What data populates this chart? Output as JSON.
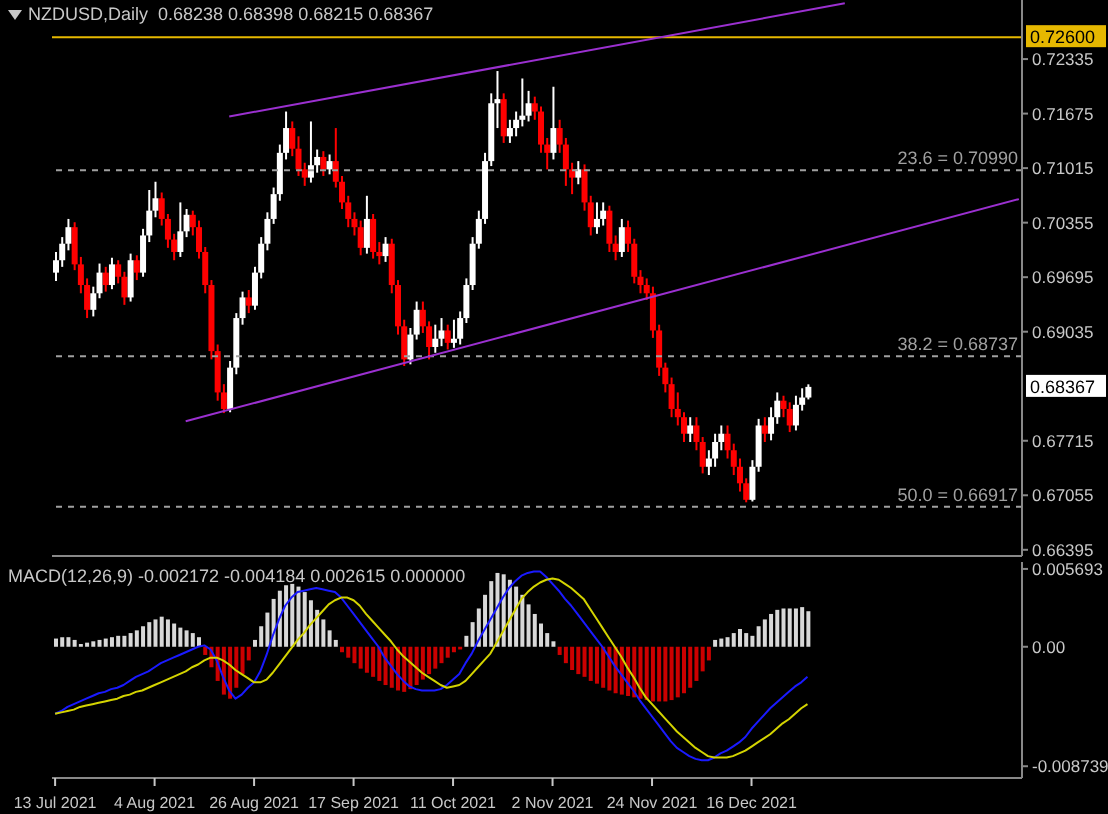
{
  "chart_data": [
    {
      "type": "candlestick",
      "title": "NZDUSD,Daily  0.68238 0.68398 0.68215 0.68367",
      "colors": [
        "#ffffff",
        "#ffffff",
        "#ffffff",
        "#ff0000",
        "#ff0000",
        "#ff0000",
        "#ffffff",
        "#ffffff",
        "#ff0000",
        "#ffffff",
        "#ff0000",
        "#ff0000",
        "#ffffff",
        "#ff0000",
        "#ffffff",
        "#ffffff",
        "#ffffff",
        "#ff0000",
        "#ff0000",
        "#ff0000",
        "#ffffff",
        "#ffffff",
        "#ff0000",
        "#ff0000",
        "#ff0000",
        "#ff0000",
        "#ff0000",
        "#ff0000",
        "#ffffff",
        "#ffffff",
        "#ffffff",
        "#ff0000",
        "#ffffff",
        "#ffffff",
        "#ffffff",
        "#ffffff",
        "#ffffff",
        "#ffffff",
        "#ff0000",
        "#ff0000",
        "#ff0000",
        "#ffffff",
        "#ffffff",
        "#ff0000",
        "#ffffff",
        "#ff0000",
        "#ff0000",
        "#ff0000",
        "#ff0000",
        "#ff0000",
        "#ffffff",
        "#ff0000",
        "#ff0000",
        "#ffffff",
        "#ff0000",
        "#ff0000",
        "#ff0000",
        "#ffffff",
        "#ffffff",
        "#ff0000",
        "#ff0000",
        "#ffffff",
        "#ffffff",
        "#ff0000",
        "#ffffff",
        "#ffffff",
        "#ffffff",
        "#ffffff",
        "#ffffff",
        "#ffffff",
        "#ffffff",
        "#ffffff",
        "#ff0000",
        "#ffffff",
        "#ffffff",
        "#ffffff",
        "#ffffff",
        "#ff0000",
        "#ff0000",
        "#ff0000",
        "#ffffff",
        "#ff0000",
        "#ff0000",
        "#ff0000",
        "#ffffff",
        "#ff0000",
        "#ff0000",
        "#ffffff",
        "#ffffff",
        "#ff0000",
        "#ff0000",
        "#ffffff",
        "#ff0000",
        "#ff0000",
        "#ff0000",
        "#ff0000",
        "#ff0000",
        "#ff0000",
        "#ff0000",
        "#ff0000",
        "#ff0000",
        "#ff0000",
        "#ffffff",
        "#ff0000",
        "#ff0000",
        "#ffffff",
        "#ffffff",
        "#ffffff",
        "#ff0000",
        "#ff0000",
        "#ff0000",
        "#ff0000",
        "#ffffff",
        "#ffffff",
        "#ff0000",
        "#ffffff",
        "#ffffff",
        "#ff0000",
        "#ff0000",
        "#ffffff",
        "#ffffff",
        "#ffffff",
        null,
        null,
        null,
        null,
        null,
        null,
        null,
        null,
        null,
        null,
        null,
        null,
        null,
        null,
        null,
        null,
        null,
        null,
        null,
        null,
        null,
        null,
        null,
        null,
        null,
        null,
        null,
        null,
        null,
        null,
        null,
        null,
        null,
        null
      ],
      "tick_labels": "y",
      "legend": false,
      "grid": false,
      "categories": [
        null,
        null,
        null,
        null,
        null,
        null,
        null,
        null,
        null,
        null,
        null,
        null,
        null,
        null,
        null,
        null,
        null,
        null,
        null,
        null,
        null,
        null,
        null,
        null,
        null,
        null,
        null,
        null,
        null,
        null,
        null,
        null,
        null,
        null,
        null,
        null,
        null,
        null,
        null,
        null,
        null,
        null,
        null,
        null,
        null,
        null,
        null,
        null,
        null,
        null,
        null,
        null,
        null,
        null,
        null,
        null,
        null,
        null,
        null,
        null,
        null,
        null,
        null,
        null,
        null,
        null,
        null,
        null,
        null,
        null,
        null,
        null,
        null,
        null,
        null,
        null,
        null,
        null,
        null,
        null,
        null,
        null,
        null,
        null,
        null,
        null,
        null,
        null,
        null,
        null,
        null,
        null,
        null,
        null,
        null,
        null,
        null,
        null,
        null,
        null,
        null,
        null,
        null,
        null,
        null,
        null,
        null,
        null,
        null,
        null,
        null,
        null,
        null,
        null,
        null,
        null,
        null,
        null,
        null,
        null,
        null,
        null,
        null,
        null,
        null,
        null,
        null,
        null,
        null,
        null,
        null,
        null,
        null,
        null,
        null,
        null,
        null,
        null,
        null,
        null,
        null,
        null,
        null,
        null,
        null,
        null,
        null,
        null,
        null,
        null,
        null,
        null,
        null,
        null,
        null,
        null
      ],
      "ohlc": [
        [
          0.6975,
          0.7,
          0.6965,
          0.699
        ],
        [
          0.699,
          0.7018,
          0.6982,
          0.701
        ],
        [
          0.701,
          0.704,
          0.7002,
          0.703
        ],
        [
          0.703,
          0.7036,
          0.6978,
          0.6985
        ],
        [
          0.6985,
          0.6994,
          0.695,
          0.696
        ],
        [
          0.696,
          0.6968,
          0.692,
          0.693
        ],
        [
          0.693,
          0.6958,
          0.6922,
          0.695
        ],
        [
          0.695,
          0.6986,
          0.6944,
          0.6975
        ],
        [
          0.6975,
          0.6982,
          0.6952,
          0.696
        ],
        [
          0.696,
          0.6993,
          0.6955,
          0.6985
        ],
        [
          0.6985,
          0.699,
          0.6962,
          0.697
        ],
        [
          0.697,
          0.6976,
          0.6936,
          0.6945
        ],
        [
          0.6945,
          0.6998,
          0.694,
          0.699
        ],
        [
          0.699,
          0.6996,
          0.6966,
          0.6975
        ],
        [
          0.6975,
          0.7028,
          0.697,
          0.702
        ],
        [
          0.702,
          0.7075,
          0.7012,
          0.705
        ],
        [
          0.705,
          0.7085,
          0.7042,
          0.7065
        ],
        [
          0.7065,
          0.7072,
          0.7032,
          0.704
        ],
        [
          0.704,
          0.7046,
          0.7005,
          0.7015
        ],
        [
          0.7015,
          0.7022,
          0.699,
          0.7
        ],
        [
          0.7,
          0.706,
          0.6994,
          0.7025
        ],
        [
          0.7025,
          0.7052,
          0.7018,
          0.7045
        ],
        [
          0.7045,
          0.705,
          0.702,
          0.703
        ],
        [
          0.703,
          0.7038,
          0.6992,
          0.7
        ],
        [
          0.7,
          0.7006,
          0.695,
          0.696
        ],
        [
          0.696,
          0.6966,
          0.687,
          0.688
        ],
        [
          0.688,
          0.6888,
          0.682,
          0.683
        ],
        [
          0.683,
          0.684,
          0.6805,
          0.681
        ],
        [
          0.681,
          0.6868,
          0.6806,
          0.686
        ],
        [
          0.686,
          0.6926,
          0.6852,
          0.692
        ],
        [
          0.692,
          0.6952,
          0.6912,
          0.6945
        ],
        [
          0.6945,
          0.6954,
          0.6926,
          0.6935
        ],
        [
          0.6935,
          0.6982,
          0.693,
          0.6975
        ],
        [
          0.6975,
          0.7018,
          0.6968,
          0.701
        ],
        [
          0.701,
          0.7048,
          0.7002,
          0.704
        ],
        [
          0.704,
          0.7078,
          0.7034,
          0.707
        ],
        [
          0.707,
          0.713,
          0.7062,
          0.712
        ],
        [
          0.712,
          0.717,
          0.7112,
          0.715
        ],
        [
          0.715,
          0.7158,
          0.7116,
          0.7125
        ],
        [
          0.7125,
          0.714,
          0.7092,
          0.71
        ],
        [
          0.71,
          0.7108,
          0.708,
          0.709
        ],
        [
          0.709,
          0.7158,
          0.7084,
          0.7105
        ],
        [
          0.7105,
          0.7124,
          0.7096,
          0.7115
        ],
        [
          0.7115,
          0.7122,
          0.7092,
          0.71
        ],
        [
          0.71,
          0.7118,
          0.7094,
          0.711
        ],
        [
          0.711,
          0.715,
          0.7078,
          0.7085
        ],
        [
          0.7085,
          0.7092,
          0.7052,
          0.706
        ],
        [
          0.706,
          0.7068,
          0.703,
          0.704
        ],
        [
          0.704,
          0.7048,
          0.702,
          0.703
        ],
        [
          0.703,
          0.7038,
          0.6996,
          0.7005
        ],
        [
          0.7005,
          0.7068,
          0.6998,
          0.704
        ],
        [
          0.704,
          0.7046,
          0.6992,
          0.7
        ],
        [
          0.7,
          0.7012,
          0.6985,
          0.6995
        ],
        [
          0.6995,
          0.7018,
          0.6988,
          0.701
        ],
        [
          0.701,
          0.7016,
          0.695,
          0.696
        ],
        [
          0.696,
          0.6966,
          0.69,
          0.691
        ],
        [
          0.691,
          0.6918,
          0.6862,
          0.687
        ],
        [
          0.687,
          0.6908,
          0.6864,
          0.69
        ],
        [
          0.69,
          0.694,
          0.6894,
          0.693
        ],
        [
          0.693,
          0.694,
          0.6902,
          0.691
        ],
        [
          0.691,
          0.6916,
          0.687,
          0.6885
        ],
        [
          0.6885,
          0.6912,
          0.6878,
          0.6895
        ],
        [
          0.6895,
          0.692,
          0.6886,
          0.6905
        ],
        [
          0.6905,
          0.6912,
          0.6882,
          0.689
        ],
        [
          0.689,
          0.6918,
          0.6884,
          0.6895
        ],
        [
          0.6895,
          0.6928,
          0.6888,
          0.692
        ],
        [
          0.692,
          0.6968,
          0.6914,
          0.696
        ],
        [
          0.696,
          0.7018,
          0.6954,
          0.701
        ],
        [
          0.701,
          0.705,
          0.7004,
          0.704
        ],
        [
          0.704,
          0.712,
          0.7034,
          0.711
        ],
        [
          0.711,
          0.7192,
          0.7104,
          0.718
        ],
        [
          0.718,
          0.7219,
          0.715,
          0.7185
        ],
        [
          0.7185,
          0.7192,
          0.7132,
          0.714
        ],
        [
          0.714,
          0.716,
          0.7132,
          0.715
        ],
        [
          0.715,
          0.717,
          0.714,
          0.716
        ],
        [
          0.716,
          0.721,
          0.7152,
          0.7165
        ],
        [
          0.7165,
          0.7195,
          0.7158,
          0.718
        ],
        [
          0.718,
          0.7188,
          0.716,
          0.717
        ],
        [
          0.717,
          0.7176,
          0.712,
          0.713
        ],
        [
          0.713,
          0.7138,
          0.71,
          0.712
        ],
        [
          0.712,
          0.72,
          0.7112,
          0.715
        ],
        [
          0.715,
          0.716,
          0.712,
          0.713
        ],
        [
          0.713,
          0.7138,
          0.708,
          0.71
        ],
        [
          0.71,
          0.7108,
          0.707,
          0.709
        ],
        [
          0.709,
          0.711,
          0.7082,
          0.71
        ],
        [
          0.71,
          0.7106,
          0.705,
          0.706
        ],
        [
          0.706,
          0.7068,
          0.702,
          0.703
        ],
        [
          0.703,
          0.706,
          0.7022,
          0.704
        ],
        [
          0.704,
          0.706,
          0.7032,
          0.705
        ],
        [
          0.705,
          0.7056,
          0.7,
          0.701
        ],
        [
          0.701,
          0.702,
          0.699,
          0.7
        ],
        [
          0.7,
          0.704,
          0.6994,
          0.703
        ],
        [
          0.703,
          0.7038,
          0.7,
          0.701
        ],
        [
          0.701,
          0.7016,
          0.6962,
          0.697
        ],
        [
          0.697,
          0.6978,
          0.695,
          0.696
        ],
        [
          0.696,
          0.6968,
          0.6942,
          0.695
        ],
        [
          0.695,
          0.6958,
          0.6896,
          0.6905
        ],
        [
          0.6905,
          0.6912,
          0.685,
          0.686
        ],
        [
          0.686,
          0.6866,
          0.683,
          0.684
        ],
        [
          0.684,
          0.6848,
          0.68,
          0.681
        ],
        [
          0.681,
          0.683,
          0.679,
          0.68
        ],
        [
          0.68,
          0.6806,
          0.677,
          0.678
        ],
        [
          0.678,
          0.68,
          0.677,
          0.679
        ],
        [
          0.679,
          0.68,
          0.676,
          0.677
        ],
        [
          0.677,
          0.6776,
          0.6732,
          0.674
        ],
        [
          0.674,
          0.676,
          0.673,
          0.675
        ],
        [
          0.675,
          0.678,
          0.674,
          0.677
        ],
        [
          0.677,
          0.679,
          0.676,
          0.678
        ],
        [
          0.678,
          0.679,
          0.675,
          0.676
        ],
        [
          0.676,
          0.6768,
          0.673,
          0.674
        ],
        [
          0.674,
          0.675,
          0.671,
          0.672
        ],
        [
          0.672,
          0.6726,
          0.6697,
          0.67
        ],
        [
          0.67,
          0.6748,
          0.6698,
          0.674
        ],
        [
          0.674,
          0.6798,
          0.6734,
          0.679
        ],
        [
          0.679,
          0.68,
          0.677,
          0.678
        ],
        [
          0.678,
          0.6812,
          0.6772,
          0.68
        ],
        [
          0.68,
          0.683,
          0.6792,
          0.682
        ],
        [
          0.682,
          0.6826,
          0.68,
          0.681
        ],
        [
          0.681,
          0.6818,
          0.6782,
          0.679
        ],
        [
          0.679,
          0.6826,
          0.6784,
          0.6815
        ],
        [
          0.6815,
          0.6835,
          0.6808,
          0.68238
        ],
        [
          0.68238,
          0.68398,
          0.68215,
          0.68367
        ],
        null,
        null,
        null,
        null,
        null,
        null,
        null,
        null,
        null,
        null,
        null,
        null,
        null,
        null,
        null,
        null,
        null,
        null,
        null,
        null,
        null,
        null,
        null,
        null,
        null,
        null,
        null,
        null,
        null,
        null,
        null,
        null,
        null,
        null
      ],
      "series": [
        {
          "type": "line",
          "color": "#9b30d0",
          "values": [
            null,
            null,
            null,
            null,
            null,
            null,
            null,
            null,
            null,
            null,
            null,
            null,
            null,
            null,
            null,
            null,
            null,
            null,
            null,
            null,
            null,
            null,
            null,
            null,
            null,
            null,
            null,
            null,
            0.7164,
            null,
            null,
            null,
            null,
            null,
            null,
            null,
            null,
            null,
            null,
            null,
            null,
            null,
            null,
            null,
            null,
            null,
            null,
            null,
            null,
            null,
            null,
            null,
            null,
            null,
            null,
            null,
            null,
            null,
            null,
            null,
            null,
            null,
            null,
            null,
            null,
            null,
            null,
            null,
            null,
            null,
            null,
            null,
            null,
            null,
            null,
            null,
            null,
            null,
            null,
            null,
            null,
            null,
            null,
            null,
            null,
            null,
            null,
            null,
            null,
            null,
            null,
            null,
            null,
            null,
            null,
            null,
            null,
            null,
            null,
            null,
            null,
            null,
            null,
            null,
            null,
            null,
            null,
            null,
            null,
            null,
            null,
            null,
            null,
            null,
            null,
            null,
            null,
            null,
            null,
            null,
            null,
            null,
            null,
            null,
            null,
            null,
            null,
            0.7301,
            null,
            null,
            null,
            null,
            null,
            null,
            null,
            null,
            null,
            null,
            null,
            null,
            null,
            null,
            null,
            null,
            null,
            null,
            null,
            null,
            null,
            null,
            null,
            null,
            null,
            null,
            null,
            null
          ]
        },
        {
          "type": "line",
          "color": "#9b30d0",
          "values": [
            null,
            null,
            null,
            null,
            null,
            null,
            null,
            null,
            null,
            null,
            null,
            null,
            null,
            null,
            null,
            null,
            null,
            null,
            null,
            null,
            null,
            0.6795,
            null,
            null,
            null,
            null,
            null,
            null,
            null,
            null,
            null,
            null,
            null,
            null,
            null,
            null,
            null,
            null,
            null,
            null,
            null,
            null,
            null,
            null,
            null,
            null,
            null,
            null,
            null,
            null,
            null,
            null,
            null,
            null,
            null,
            null,
            null,
            null,
            null,
            null,
            null,
            null,
            null,
            null,
            null,
            null,
            null,
            null,
            null,
            null,
            null,
            null,
            null,
            null,
            null,
            null,
            null,
            null,
            null,
            null,
            null,
            null,
            null,
            null,
            null,
            null,
            null,
            null,
            null,
            null,
            null,
            null,
            null,
            null,
            null,
            null,
            null,
            null,
            null,
            null,
            null,
            null,
            null,
            null,
            null,
            null,
            null,
            null,
            null,
            null,
            null,
            null,
            null,
            null,
            null,
            null,
            null,
            null,
            null,
            null,
            null,
            null,
            null,
            null,
            null,
            null,
            null,
            null,
            null,
            null,
            null,
            null,
            null,
            null,
            null,
            null,
            null,
            null,
            null,
            null,
            null,
            null,
            null,
            null,
            null,
            null,
            null,
            null,
            null,
            null,
            null,
            null,
            null,
            null,
            null,
            0.7064
          ]
        }
      ],
      "ylim": [
        0.6632,
        0.7305
      ],
      "yticks": [
        0.72335,
        0.71675,
        0.71015,
        0.70355,
        0.69695,
        0.69035,
        0.67715,
        0.67055,
        0.66395
      ],
      "ref_lines": [
        {
          "axis": "y",
          "value": 0.726,
          "label": "0.72600",
          "color": "#e6b800",
          "line_style": "solid"
        },
        {
          "axis": "y",
          "value": 0.7099,
          "label": "23.6 = 0.70990",
          "color": "#a0a0a0",
          "line_style": "dashed"
        },
        {
          "axis": "y",
          "value": 0.68737,
          "label": "38.2 = 0.68737",
          "color": "#a0a0a0",
          "line_style": "dashed"
        },
        {
          "axis": "y",
          "value": 0.66917,
          "label": "50.0 = 0.66917",
          "color": "#a0a0a0",
          "line_style": "dashed"
        }
      ],
      "annotations": [
        "0.68367"
      ]
    },
    {
      "type": "bar",
      "title": "MACD(12,26,9) -0.002172 -0.004184 0.002615 0.000000",
      "stacked": true,
      "legend": false,
      "grid": false,
      "categories": [
        "13 Jul 2021",
        null,
        null,
        null,
        null,
        null,
        null,
        null,
        null,
        null,
        null,
        null,
        null,
        null,
        null,
        null,
        "4 Aug 2021",
        null,
        null,
        null,
        null,
        null,
        null,
        null,
        null,
        null,
        null,
        null,
        null,
        null,
        null,
        null,
        "26 Aug 2021",
        null,
        null,
        null,
        null,
        null,
        null,
        null,
        null,
        null,
        null,
        null,
        null,
        null,
        null,
        null,
        "17 Sep 2021",
        null,
        null,
        null,
        null,
        null,
        null,
        null,
        null,
        null,
        null,
        null,
        null,
        null,
        null,
        null,
        "11 Oct 2021",
        null,
        null,
        null,
        null,
        null,
        null,
        null,
        null,
        null,
        null,
        null,
        null,
        null,
        null,
        null,
        "2 Nov 2021",
        null,
        null,
        null,
        null,
        null,
        null,
        null,
        null,
        null,
        null,
        null,
        null,
        null,
        null,
        null,
        "24 Nov 2021",
        null,
        null,
        null,
        null,
        null,
        null,
        null,
        null,
        null,
        null,
        null,
        null,
        null,
        null,
        null,
        "16 Dec 2021",
        null,
        null,
        null,
        null,
        null,
        null,
        null,
        null,
        null,
        null,
        null,
        null,
        null,
        null,
        null,
        null,
        null,
        null,
        null,
        null,
        null,
        null,
        null,
        null,
        null,
        null,
        null,
        null,
        null,
        null,
        null,
        null,
        null,
        null,
        null,
        null,
        null,
        null,
        null,
        null,
        null,
        null,
        null
      ],
      "series": [
        {
          "color": "#d8d8d8",
          "values": [
            0.0006,
            0.0007,
            0.0007,
            0.0005,
            0.0002,
            0.0003,
            0.0004,
            0.0005,
            0.0006,
            0.0007,
            0.0008,
            0.0008,
            0.001,
            0.0012,
            0.0015,
            0.0018,
            0.002,
            0.0022,
            0.002,
            0.0017,
            0.0014,
            0.0012,
            0.001,
            0.0007,
            null,
            null,
            null,
            null,
            null,
            null,
            null,
            null,
            0.0005,
            0.0015,
            0.0025,
            0.0035,
            0.0041,
            0.0045,
            0.0046,
            0.0044,
            0.004,
            0.0034,
            0.0027,
            0.002,
            0.0012,
            0.0005,
            null,
            null,
            null,
            null,
            null,
            null,
            null,
            null,
            null,
            null,
            null,
            null,
            null,
            null,
            null,
            null,
            null,
            null,
            null,
            null,
            0.0008,
            0.0018,
            0.0028,
            0.0038,
            0.0048,
            0.0054,
            0.0053,
            0.0049,
            0.0044,
            0.0038,
            0.0031,
            0.0024,
            0.0017,
            0.001,
            0.0004,
            null,
            null,
            null,
            null,
            null,
            null,
            null,
            null,
            null,
            null,
            null,
            null,
            null,
            null,
            null,
            null,
            null,
            null,
            null,
            null,
            null,
            null,
            null,
            null,
            null,
            0.0005,
            0.0006,
            0.0007,
            0.001,
            0.0013,
            0.001,
            0.0008,
            0.0015,
            0.002,
            0.0024,
            0.0027,
            0.0028,
            0.0028,
            0.0028,
            0.0029,
            0.0026,
            null,
            null,
            null,
            null,
            null,
            null,
            null,
            null,
            null,
            null,
            null,
            null,
            null,
            null,
            null,
            null,
            null,
            null,
            null,
            null,
            null,
            null,
            null,
            null,
            null,
            null,
            null,
            null,
            null,
            null,
            null,
            null,
            null,
            null
          ]
        },
        {
          "color": "#cc0000",
          "values": [
            null,
            null,
            null,
            null,
            null,
            null,
            null,
            null,
            null,
            null,
            null,
            null,
            null,
            null,
            null,
            null,
            null,
            null,
            null,
            null,
            null,
            null,
            null,
            null,
            -0.0006,
            -0.0015,
            -0.0025,
            -0.0035,
            -0.0038,
            -0.003,
            -0.002,
            -0.001,
            null,
            null,
            null,
            null,
            null,
            null,
            null,
            null,
            null,
            null,
            null,
            null,
            null,
            null,
            -0.0004,
            -0.0008,
            -0.0012,
            -0.0016,
            -0.0019,
            -0.0022,
            -0.0025,
            -0.0028,
            -0.003,
            -0.0032,
            -0.0033,
            -0.0031,
            -0.0028,
            -0.0024,
            -0.002,
            -0.0016,
            -0.0012,
            -0.0008,
            -0.0004,
            -0.0002,
            null,
            null,
            null,
            null,
            null,
            null,
            null,
            null,
            null,
            null,
            null,
            null,
            null,
            null,
            null,
            -0.0006,
            -0.0012,
            -0.0017,
            -0.002,
            -0.0022,
            -0.0025,
            -0.0027,
            -0.003,
            -0.0032,
            -0.0034,
            -0.0035,
            -0.0036,
            -0.0037,
            -0.0038,
            -0.0039,
            -0.004,
            -0.004,
            -0.004,
            -0.0039,
            -0.0037,
            -0.0034,
            -0.003,
            -0.0025,
            -0.0018,
            -0.001,
            null,
            null,
            null,
            null,
            null,
            null,
            null,
            null,
            null,
            null,
            null,
            null,
            null,
            null,
            null,
            null,
            null,
            null,
            null,
            null,
            null,
            null,
            null,
            null,
            null,
            null,
            null,
            null,
            null,
            null,
            null,
            null,
            null,
            null,
            null,
            null,
            null,
            null,
            null,
            null,
            null,
            null,
            null,
            null,
            null,
            null,
            null,
            null,
            null,
            null
          ]
        },
        {
          "type": "line",
          "color": "#1a1aff",
          "values": [
            -0.0049,
            -0.0047,
            -0.0044,
            -0.0042,
            -0.004,
            -0.0038,
            -0.0036,
            -0.0034,
            -0.0033,
            -0.0031,
            -0.003,
            -0.0028,
            -0.0025,
            -0.0022,
            -0.002,
            -0.0018,
            -0.0015,
            -0.0012,
            -0.001,
            -0.0008,
            -0.0006,
            -0.0004,
            -0.0002,
            0.0,
            0.0001,
            -0.0002,
            -0.001,
            -0.0022,
            -0.0032,
            -0.0038,
            -0.0035,
            -0.003,
            -0.0026,
            -0.0018,
            -0.0006,
            0.0008,
            0.002,
            0.003,
            0.0036,
            0.004,
            0.0041,
            0.0042,
            0.0043,
            0.0042,
            0.0041,
            0.004,
            0.0036,
            0.003,
            0.0024,
            0.0018,
            0.0012,
            0.0006,
            0.0,
            -0.0008,
            -0.0014,
            -0.002,
            -0.0025,
            -0.0029,
            -0.0031,
            -0.0032,
            -0.0032,
            -0.0032,
            -0.0031,
            -0.0028,
            -0.0024,
            -0.002,
            -0.0012,
            -0.0005,
            0.0004,
            0.0012,
            0.002,
            0.0028,
            0.0036,
            0.0043,
            0.0048,
            0.0052,
            0.0054,
            0.0055,
            0.0055,
            0.0051,
            0.0046,
            0.0041,
            0.0035,
            0.003,
            0.0024,
            0.0018,
            0.0012,
            0.0006,
            0.0,
            -0.0007,
            -0.0014,
            -0.002,
            -0.0026,
            -0.0032,
            -0.0039,
            -0.0045,
            -0.0051,
            -0.0057,
            -0.0063,
            -0.0069,
            -0.0074,
            -0.0077,
            -0.008,
            -0.0082,
            -0.0083,
            -0.0083,
            -0.0081,
            -0.0078,
            -0.0076,
            -0.0073,
            -0.007,
            -0.0066,
            -0.006,
            -0.0055,
            -0.005,
            -0.0045,
            -0.0041,
            -0.0037,
            -0.0033,
            -0.0029,
            -0.0026,
            -0.0022,
            null,
            null,
            null,
            null,
            null,
            null,
            null,
            null,
            null,
            null,
            null,
            null,
            null,
            null,
            null,
            null,
            null,
            null,
            null,
            null,
            null,
            null,
            null,
            null,
            null,
            null,
            null,
            null,
            null,
            null,
            null,
            null,
            null,
            null
          ]
        },
        {
          "type": "line",
          "color": "#d4d400",
          "values": [
            -0.0049,
            -0.0048,
            -0.0047,
            -0.0046,
            -0.0044,
            -0.0043,
            -0.0042,
            -0.0041,
            -0.004,
            -0.0039,
            -0.0038,
            -0.0036,
            -0.0035,
            -0.0033,
            -0.0032,
            -0.003,
            -0.0028,
            -0.0026,
            -0.0024,
            -0.0022,
            -0.002,
            -0.0018,
            -0.0015,
            -0.0013,
            -0.001,
            -0.0008,
            -0.0008,
            -0.001,
            -0.0013,
            -0.0017,
            -0.002,
            -0.0023,
            -0.0026,
            -0.0026,
            -0.0024,
            -0.0019,
            -0.0013,
            -0.0007,
            -0.0001,
            0.0005,
            0.001,
            0.0016,
            0.0021,
            0.0026,
            0.0031,
            0.0034,
            0.0036,
            0.0036,
            0.0034,
            0.003,
            0.0024,
            0.0019,
            0.0014,
            0.0009,
            0.0004,
            -0.0002,
            -0.0007,
            -0.0011,
            -0.0015,
            -0.0019,
            -0.0022,
            -0.0025,
            -0.0028,
            -0.003,
            -0.0029,
            -0.0028,
            -0.0025,
            -0.002,
            -0.0015,
            -0.001,
            -0.0005,
            0.0003,
            0.0011,
            0.0019,
            0.0027,
            0.0035,
            0.004,
            0.0044,
            0.0047,
            0.0049,
            0.005,
            0.0049,
            0.0046,
            0.0043,
            0.0039,
            0.0035,
            0.0028,
            0.0021,
            0.0014,
            0.0007,
            0.0,
            -0.0007,
            -0.0015,
            -0.0022,
            -0.003,
            -0.0037,
            -0.0042,
            -0.0047,
            -0.0052,
            -0.0057,
            -0.0062,
            -0.0066,
            -0.007,
            -0.0074,
            -0.0077,
            -0.008,
            -0.0081,
            -0.0081,
            -0.0081,
            -0.008,
            -0.0078,
            -0.0076,
            -0.0073,
            -0.007,
            -0.0067,
            -0.0064,
            -0.006,
            -0.0056,
            -0.0053,
            -0.0049,
            -0.0045,
            -0.0042,
            null,
            null,
            null,
            null,
            null,
            null,
            null,
            null,
            null,
            null,
            null,
            null,
            null,
            null,
            null,
            null,
            null,
            null,
            null,
            null,
            null,
            null,
            null,
            null,
            null,
            null,
            null,
            null,
            null,
            null,
            null,
            null,
            null,
            null
          ]
        }
      ],
      "ylim": [
        -0.0096,
        0.0062
      ],
      "yticks": [
        0.005693,
        {
          "value": 0,
          "label": "0.00"
        },
        -0.008739
      ]
    }
  ]
}
